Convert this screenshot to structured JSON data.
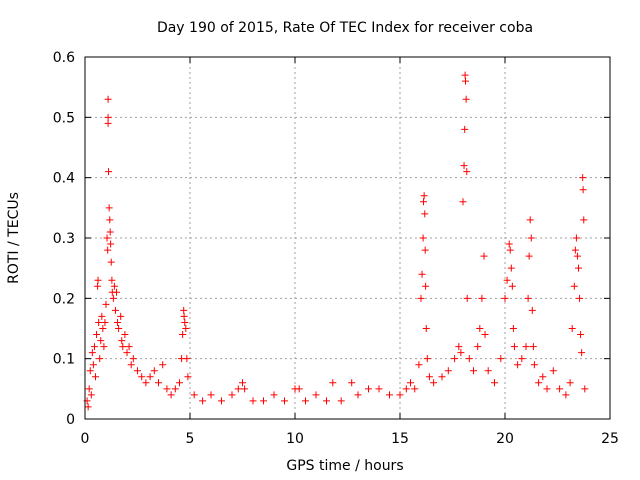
{
  "chart_data": {
    "type": "scatter",
    "title": "Day 190 of 2015, Rate Of TEC Index for receiver coba",
    "xlabel": "GPS time / hours",
    "ylabel": "ROTI / TECUs",
    "xlim": [
      0,
      25
    ],
    "ylim": [
      0,
      0.6
    ],
    "xticks": [
      "0",
      "5",
      "10",
      "15",
      "20",
      "25"
    ],
    "yticks": [
      "0",
      "0.1",
      "0.2",
      "0.3",
      "0.4",
      "0.5",
      "0.6"
    ],
    "grid": true,
    "marker": "+",
    "series": [
      {
        "name": "ROTI",
        "color": "#ff0000",
        "points": [
          [
            0.1,
            0.03
          ],
          [
            0.15,
            0.02
          ],
          [
            0.2,
            0.05
          ],
          [
            0.25,
            0.08
          ],
          [
            0.3,
            0.04
          ],
          [
            0.35,
            0.11
          ],
          [
            0.4,
            0.09
          ],
          [
            0.45,
            0.12
          ],
          [
            0.5,
            0.07
          ],
          [
            0.55,
            0.14
          ],
          [
            0.6,
            0.22
          ],
          [
            0.62,
            0.23
          ],
          [
            0.65,
            0.16
          ],
          [
            0.7,
            0.1
          ],
          [
            0.75,
            0.13
          ],
          [
            0.8,
            0.17
          ],
          [
            0.85,
            0.15
          ],
          [
            0.9,
            0.12
          ],
          [
            0.95,
            0.16
          ],
          [
            1.0,
            0.19
          ],
          [
            1.05,
            0.3
          ],
          [
            1.08,
            0.28
          ],
          [
            1.1,
            0.53
          ],
          [
            1.1,
            0.5
          ],
          [
            1.1,
            0.49
          ],
          [
            1.12,
            0.41
          ],
          [
            1.15,
            0.35
          ],
          [
            1.18,
            0.33
          ],
          [
            1.2,
            0.31
          ],
          [
            1.22,
            0.29
          ],
          [
            1.25,
            0.26
          ],
          [
            1.28,
            0.23
          ],
          [
            1.3,
            0.21
          ],
          [
            1.35,
            0.2
          ],
          [
            1.4,
            0.22
          ],
          [
            1.45,
            0.18
          ],
          [
            1.5,
            0.21
          ],
          [
            1.55,
            0.16
          ],
          [
            1.6,
            0.15
          ],
          [
            1.7,
            0.17
          ],
          [
            1.75,
            0.13
          ],
          [
            1.8,
            0.12
          ],
          [
            1.9,
            0.14
          ],
          [
            2.0,
            0.11
          ],
          [
            2.1,
            0.12
          ],
          [
            2.2,
            0.09
          ],
          [
            2.3,
            0.1
          ],
          [
            2.5,
            0.08
          ],
          [
            2.7,
            0.07
          ],
          [
            2.9,
            0.06
          ],
          [
            3.1,
            0.07
          ],
          [
            3.3,
            0.08
          ],
          [
            3.5,
            0.06
          ],
          [
            3.7,
            0.09
          ],
          [
            3.9,
            0.05
          ],
          [
            4.1,
            0.04
          ],
          [
            4.3,
            0.05
          ],
          [
            4.5,
            0.06
          ],
          [
            4.6,
            0.1
          ],
          [
            4.65,
            0.14
          ],
          [
            4.7,
            0.18
          ],
          [
            4.72,
            0.17
          ],
          [
            4.75,
            0.16
          ],
          [
            4.8,
            0.15
          ],
          [
            4.85,
            0.1
          ],
          [
            4.9,
            0.07
          ],
          [
            5.2,
            0.04
          ],
          [
            5.6,
            0.03
          ],
          [
            6.0,
            0.04
          ],
          [
            6.5,
            0.03
          ],
          [
            7.0,
            0.04
          ],
          [
            7.3,
            0.05
          ],
          [
            7.5,
            0.06
          ],
          [
            7.6,
            0.05
          ],
          [
            8.0,
            0.03
          ],
          [
            8.5,
            0.03
          ],
          [
            9.0,
            0.04
          ],
          [
            9.5,
            0.03
          ],
          [
            10.0,
            0.05
          ],
          [
            10.2,
            0.05
          ],
          [
            10.5,
            0.03
          ],
          [
            11.0,
            0.04
          ],
          [
            11.5,
            0.03
          ],
          [
            11.8,
            0.06
          ],
          [
            12.2,
            0.03
          ],
          [
            12.7,
            0.06
          ],
          [
            13.0,
            0.04
          ],
          [
            13.5,
            0.05
          ],
          [
            14.0,
            0.05
          ],
          [
            14.5,
            0.04
          ],
          [
            15.0,
            0.04
          ],
          [
            15.3,
            0.05
          ],
          [
            15.5,
            0.06
          ],
          [
            15.7,
            0.05
          ],
          [
            15.9,
            0.09
          ],
          [
            16.0,
            0.2
          ],
          [
            16.05,
            0.24
          ],
          [
            16.1,
            0.3
          ],
          [
            16.12,
            0.36
          ],
          [
            16.15,
            0.37
          ],
          [
            16.18,
            0.34
          ],
          [
            16.2,
            0.28
          ],
          [
            16.22,
            0.22
          ],
          [
            16.25,
            0.15
          ],
          [
            16.3,
            0.1
          ],
          [
            16.4,
            0.07
          ],
          [
            16.6,
            0.06
          ],
          [
            17.0,
            0.07
          ],
          [
            17.3,
            0.08
          ],
          [
            17.6,
            0.1
          ],
          [
            17.8,
            0.12
          ],
          [
            17.9,
            0.11
          ],
          [
            18.0,
            0.36
          ],
          [
            18.05,
            0.42
          ],
          [
            18.08,
            0.48
          ],
          [
            18.1,
            0.57
          ],
          [
            18.12,
            0.56
          ],
          [
            18.15,
            0.53
          ],
          [
            18.18,
            0.41
          ],
          [
            18.2,
            0.2
          ],
          [
            18.3,
            0.1
          ],
          [
            18.5,
            0.08
          ],
          [
            18.7,
            0.12
          ],
          [
            18.8,
            0.15
          ],
          [
            18.9,
            0.2
          ],
          [
            19.0,
            0.27
          ],
          [
            19.05,
            0.14
          ],
          [
            19.2,
            0.08
          ],
          [
            19.5,
            0.06
          ],
          [
            19.8,
            0.1
          ],
          [
            20.0,
            0.2
          ],
          [
            20.1,
            0.23
          ],
          [
            20.2,
            0.29
          ],
          [
            20.25,
            0.28
          ],
          [
            20.3,
            0.25
          ],
          [
            20.35,
            0.22
          ],
          [
            20.4,
            0.15
          ],
          [
            20.45,
            0.12
          ],
          [
            20.6,
            0.09
          ],
          [
            20.8,
            0.1
          ],
          [
            21.0,
            0.12
          ],
          [
            21.1,
            0.2
          ],
          [
            21.15,
            0.27
          ],
          [
            21.2,
            0.33
          ],
          [
            21.25,
            0.3
          ],
          [
            21.3,
            0.18
          ],
          [
            21.35,
            0.12
          ],
          [
            21.4,
            0.09
          ],
          [
            21.6,
            0.06
          ],
          [
            21.8,
            0.07
          ],
          [
            22.0,
            0.05
          ],
          [
            22.3,
            0.08
          ],
          [
            22.6,
            0.05
          ],
          [
            22.9,
            0.04
          ],
          [
            23.1,
            0.06
          ],
          [
            23.2,
            0.15
          ],
          [
            23.3,
            0.22
          ],
          [
            23.35,
            0.28
          ],
          [
            23.4,
            0.3
          ],
          [
            23.45,
            0.27
          ],
          [
            23.5,
            0.25
          ],
          [
            23.55,
            0.2
          ],
          [
            23.6,
            0.14
          ],
          [
            23.65,
            0.11
          ],
          [
            23.7,
            0.4
          ],
          [
            23.72,
            0.38
          ],
          [
            23.75,
            0.33
          ],
          [
            23.8,
            0.05
          ]
        ]
      }
    ]
  }
}
